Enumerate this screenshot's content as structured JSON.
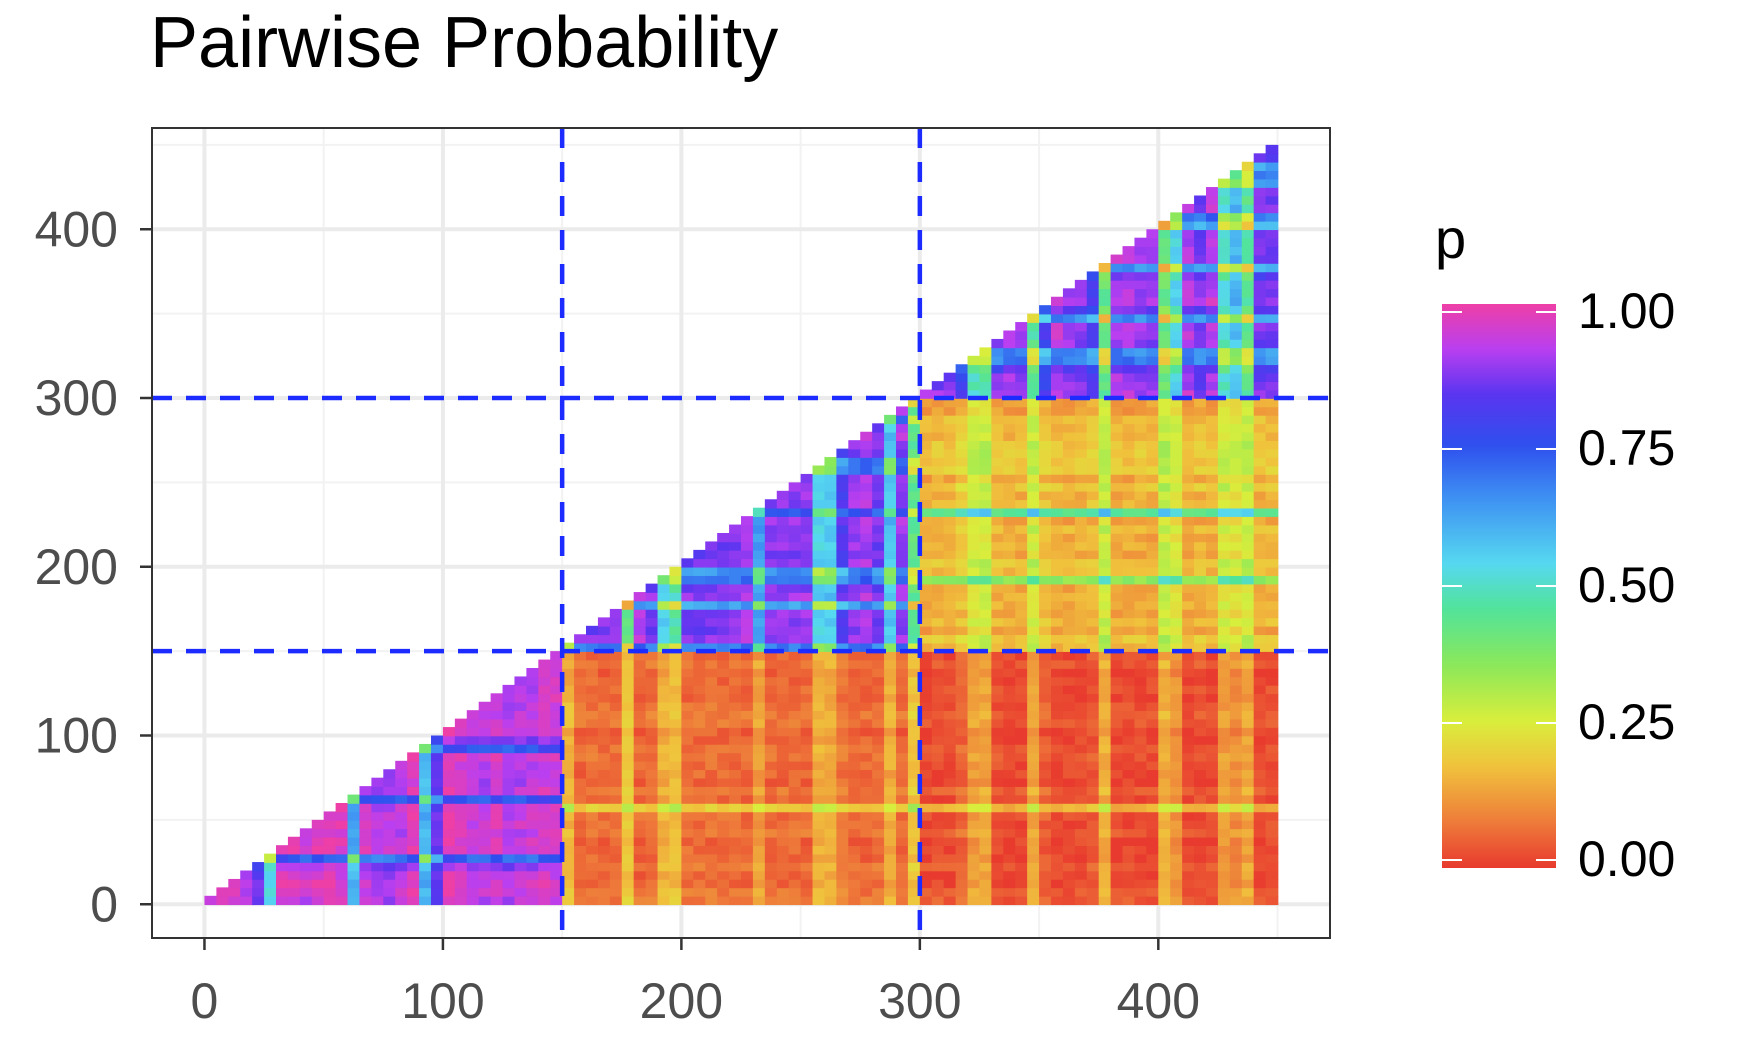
{
  "chart_data": {
    "type": "heatmap",
    "title": "Pairwise Probability",
    "xlabel": "",
    "ylabel": "",
    "xlim": [
      -22,
      472
    ],
    "ylim": [
      -20,
      460
    ],
    "x_ticks": [
      0,
      100,
      200,
      300,
      400
    ],
    "y_ticks": [
      0,
      100,
      200,
      300,
      400
    ],
    "x_tick_labels": [
      "0",
      "100",
      "200",
      "300",
      "400"
    ],
    "y_tick_labels": [
      "0",
      "100",
      "200",
      "300",
      "400"
    ],
    "grid": true,
    "shape": "upper triangle, x from 0 to 450, y from 0 to x",
    "reference_lines": [
      {
        "axis": "x",
        "value": 150,
        "color": "#1c2bff",
        "style": "dashed"
      },
      {
        "axis": "x",
        "value": 300,
        "color": "#1c2bff",
        "style": "dashed"
      },
      {
        "axis": "y",
        "value": 150,
        "color": "#1c2bff",
        "style": "dashed"
      },
      {
        "axis": "y",
        "value": 300,
        "color": "#1c2bff",
        "style": "dashed"
      }
    ],
    "blocks": [
      {
        "x_range": [
          0,
          150
        ],
        "y_range": [
          0,
          150
        ],
        "typical_p": 0.95
      },
      {
        "x_range": [
          150,
          300
        ],
        "y_range": [
          150,
          300
        ],
        "typical_p": 0.9
      },
      {
        "x_range": [
          300,
          450
        ],
        "y_range": [
          300,
          450
        ],
        "typical_p": 0.9
      },
      {
        "x_range": [
          300,
          450
        ],
        "y_range": [
          150,
          300
        ],
        "typical_p": 0.15
      },
      {
        "x_range": [
          150,
          300
        ],
        "y_range": [
          0,
          150
        ],
        "typical_p": 0.06
      },
      {
        "x_range": [
          300,
          450
        ],
        "y_range": [
          0,
          150
        ],
        "typical_p": 0.02
      }
    ],
    "legend": {
      "title": "p",
      "placement": "right",
      "breaks": [
        1.0,
        0.75,
        0.5,
        0.25,
        0.0
      ],
      "labels": [
        "1.00",
        "0.75",
        "0.50",
        "0.25",
        "0.00"
      ],
      "colormap": [
        {
          "p": 0.0,
          "color": "#e83a2e"
        },
        {
          "p": 0.08,
          "color": "#ee7a3a"
        },
        {
          "p": 0.18,
          "color": "#f0c23c"
        },
        {
          "p": 0.26,
          "color": "#d9ee3c"
        },
        {
          "p": 0.36,
          "color": "#8be85a"
        },
        {
          "p": 0.46,
          "color": "#52e39b"
        },
        {
          "p": 0.54,
          "color": "#56d8f0"
        },
        {
          "p": 0.66,
          "color": "#3d8ef2"
        },
        {
          "p": 0.75,
          "color": "#2f4fee"
        },
        {
          "p": 0.84,
          "color": "#5a35f0"
        },
        {
          "p": 0.92,
          "color": "#b93ff0"
        },
        {
          "p": 1.0,
          "color": "#ee3fa6"
        }
      ]
    }
  }
}
